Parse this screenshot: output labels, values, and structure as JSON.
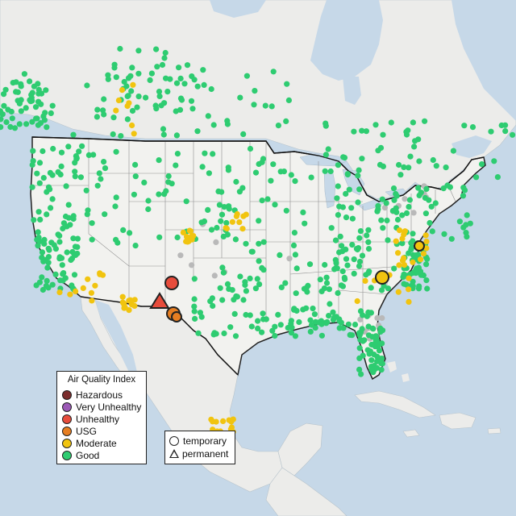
{
  "map": {
    "region": "United States, southern Canada and northern Mexico",
    "colors": {
      "water": "#c6d8e8",
      "land": "#ededea",
      "us_land": "#f2f2ef",
      "good": "#2ecc71",
      "moderate": "#f1c40f",
      "usg": "#e67e22",
      "unhealthy": "#e74c3c",
      "very_unhealthy": "#9b59b6",
      "hazardous": "#7b2d2d",
      "no_data": "#b9b9b9"
    }
  },
  "legend": {
    "title": "Air Quality Index",
    "categories": [
      {
        "label": "Hazardous",
        "color": "#7b2d2d"
      },
      {
        "label": "Very Unhealthy",
        "color": "#9b59b6"
      },
      {
        "label": "Unhealthy",
        "color": "#e74c3c"
      },
      {
        "label": "USG",
        "color": "#e67e22"
      },
      {
        "label": "Moderate",
        "color": "#f1c40f"
      },
      {
        "label": "Good",
        "color": "#2ecc71"
      }
    ]
  },
  "monitor_types": {
    "temporary": "temporary",
    "permanent": "permanent"
  }
}
